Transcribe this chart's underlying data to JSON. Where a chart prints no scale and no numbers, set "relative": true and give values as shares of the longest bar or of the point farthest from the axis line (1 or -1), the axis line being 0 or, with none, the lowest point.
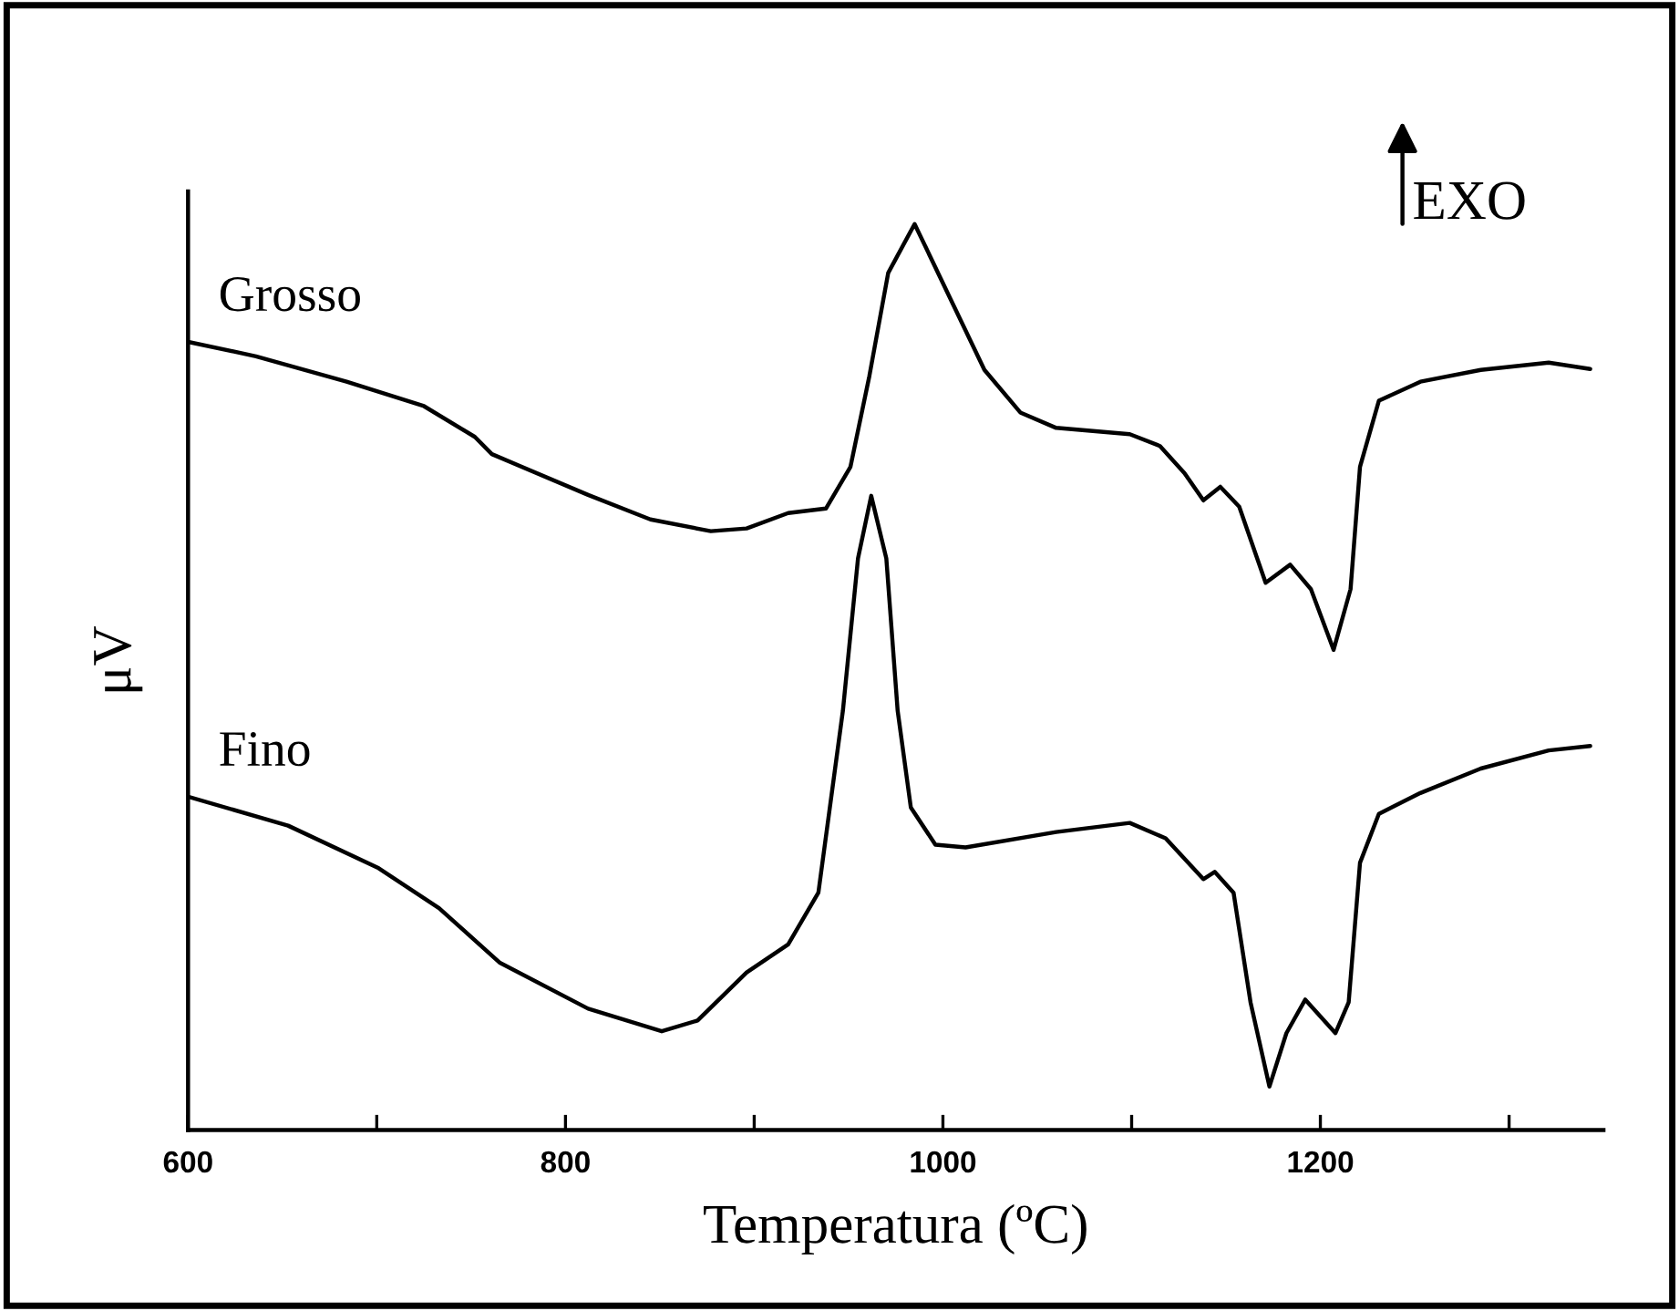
{
  "chart_data": {
    "type": "line",
    "relative": true,
    "xlabel": "Temperatura (ºC)",
    "ylabel": "μV",
    "xlim": [
      600,
      1350
    ],
    "xticks": [
      600,
      {
        "value": 700,
        "label": null
      },
      800,
      {
        "value": 900,
        "label": null
      },
      1000,
      {
        "value": 1100,
        "label": null
      },
      1200,
      {
        "value": 1300,
        "label": null
      }
    ],
    "legend": false,
    "grid": false,
    "marker": "none",
    "line_style": "solid",
    "annotations": [
      "EXO"
    ],
    "series": [
      {
        "name": "Grosso",
        "color": "#000000",
        "x": [
          600,
          636,
          684,
          725,
          752,
          761,
          812,
          845,
          877,
          896,
          918,
          938,
          951,
          961,
          971,
          985,
          1005,
          1022,
          1041,
          1060,
          1099,
          1115,
          1128,
          1138,
          1147,
          1157,
          1171,
          1184,
          1195,
          1207,
          1216,
          1221,
          1231,
          1253,
          1285,
          1321,
          1343
        ],
        "values": [
          0.87,
          0.854,
          0.826,
          0.799,
          0.765,
          0.746,
          0.701,
          0.674,
          0.661,
          0.664,
          0.681,
          0.686,
          0.732,
          0.832,
          0.946,
          1.0,
          0.913,
          0.839,
          0.792,
          0.775,
          0.768,
          0.755,
          0.725,
          0.695,
          0.71,
          0.688,
          0.604,
          0.624,
          0.597,
          0.53,
          0.597,
          0.732,
          0.805,
          0.826,
          0.839,
          0.847,
          0.84
        ]
      },
      {
        "name": "Fino",
        "color": "#000000",
        "x": [
          600,
          653,
          701,
          733,
          765,
          812,
          851,
          870,
          896,
          918,
          934,
          947,
          955,
          962,
          970,
          976,
          983,
          996,
          1012,
          1060,
          1099,
          1118,
          1138,
          1144,
          1154,
          1163,
          1173,
          1182,
          1192,
          1208,
          1215,
          1221,
          1231,
          1253,
          1285,
          1321,
          1343
        ],
        "values": [
          0.368,
          0.336,
          0.289,
          0.245,
          0.185,
          0.134,
          0.109,
          0.121,
          0.174,
          0.205,
          0.262,
          0.463,
          0.631,
          0.7,
          0.631,
          0.463,
          0.356,
          0.315,
          0.312,
          0.329,
          0.339,
          0.322,
          0.277,
          0.285,
          0.262,
          0.141,
          0.048,
          0.107,
          0.144,
          0.107,
          0.141,
          0.295,
          0.349,
          0.372,
          0.399,
          0.419,
          0.424
        ]
      }
    ]
  }
}
